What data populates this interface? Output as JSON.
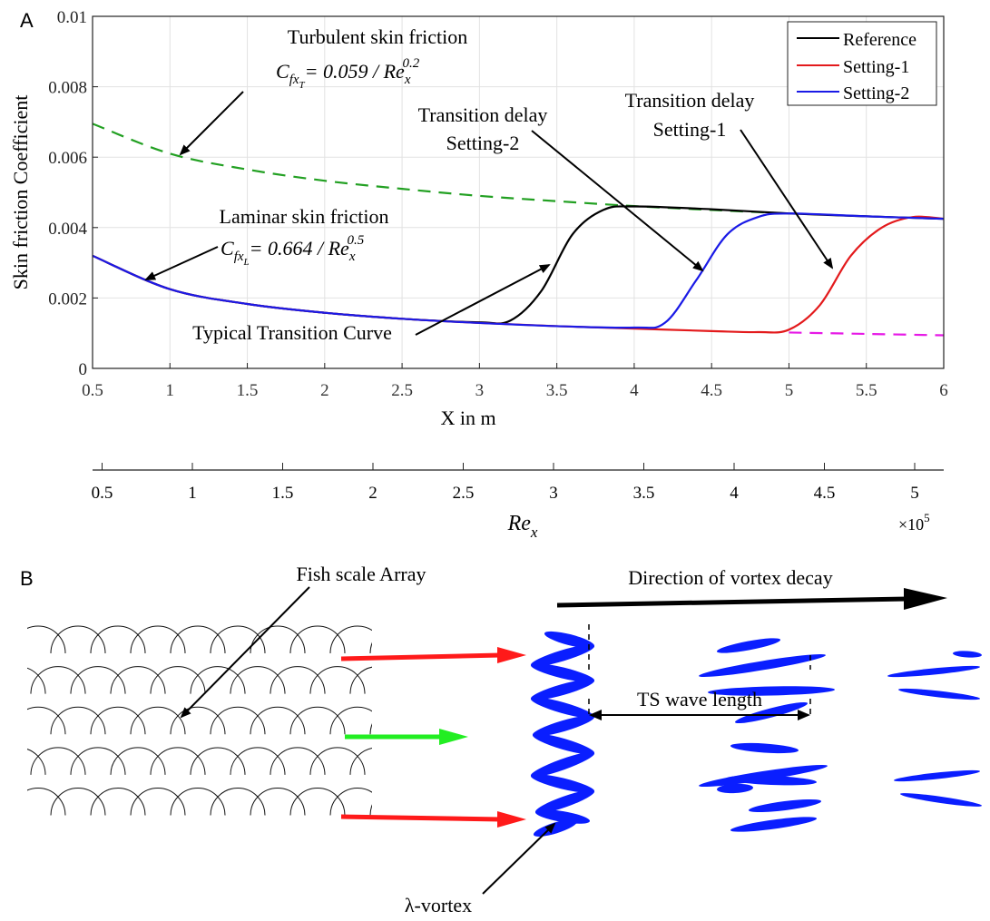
{
  "panel_a_label": "A",
  "panel_b_label": "B",
  "chart_data": {
    "type": "line",
    "xlabel": "X in m",
    "ylabel": "Skin friction Coefficient",
    "xlim": [
      0.5,
      6
    ],
    "ylim": [
      0,
      0.01
    ],
    "xticks": [
      "0.5",
      "1",
      "1.5",
      "2",
      "2.5",
      "3",
      "3.5",
      "4",
      "4.5",
      "5",
      "5.5",
      "6"
    ],
    "yticks": [
      "0",
      "0.002",
      "0.004",
      "0.006",
      "0.008",
      "0.01"
    ],
    "grid": true,
    "legend_position": "top-right",
    "series": [
      {
        "name": "Reference",
        "color": "#000000",
        "x": [
          0.5,
          1,
          1.5,
          2,
          2.5,
          3,
          3.2,
          3.4,
          3.6,
          3.8,
          4.0,
          4.5,
          5.0,
          5.5,
          6.0
        ],
        "y": [
          0.0032,
          0.00225,
          0.00183,
          0.00158,
          0.00141,
          0.00131,
          0.00136,
          0.0022,
          0.0038,
          0.0045,
          0.0046,
          0.00452,
          0.0044,
          0.00432,
          0.00425
        ]
      },
      {
        "name": "Setting-1",
        "color": "#e31a1c",
        "x": [
          0.5,
          1,
          1.5,
          2,
          2.5,
          3,
          3.5,
          4,
          4.5,
          4.8,
          5.0,
          5.2,
          5.4,
          5.6,
          5.8,
          6.0
        ],
        "y": [
          0.0032,
          0.00225,
          0.00183,
          0.00158,
          0.00141,
          0.00129,
          0.0012,
          0.00113,
          0.00106,
          0.00103,
          0.0011,
          0.0018,
          0.0032,
          0.004,
          0.0043,
          0.00425
        ]
      },
      {
        "name": "Setting-2",
        "color": "#1a1ae6",
        "x": [
          0.5,
          1,
          1.5,
          2,
          2.5,
          3,
          3.5,
          4.0,
          4.2,
          4.4,
          4.6,
          4.8,
          5.0,
          5.5,
          6.0
        ],
        "y": [
          0.0032,
          0.00225,
          0.00183,
          0.00158,
          0.00141,
          0.00129,
          0.0012,
          0.00116,
          0.0013,
          0.0025,
          0.0038,
          0.0043,
          0.0044,
          0.00432,
          0.00425
        ]
      },
      {
        "color": "#22a022",
        "style": "dashed",
        "x": [
          0.5,
          1,
          1.5,
          2,
          2.5,
          3,
          3.5,
          4,
          4.5,
          5
        ],
        "y": [
          0.00695,
          0.0061,
          0.00565,
          0.00533,
          0.0051,
          0.0049,
          0.00475,
          0.00461,
          0.0045,
          0.0044
        ]
      },
      {
        "color": "#e619e6",
        "style": "dashed",
        "x": [
          5.0,
          5.5,
          6.0
        ],
        "y": [
          0.00102,
          0.00098,
          0.00094
        ]
      }
    ],
    "secondary_axis": {
      "label": "Re",
      "label_subscript": "x",
      "ticks": [
        "0.5",
        "1",
        "1.5",
        "2",
        "2.5",
        "3",
        "3.5",
        "4",
        "4.5",
        "5"
      ],
      "multiplier_base": "×10",
      "multiplier_exp": "5"
    },
    "annotations": {
      "turbulent_title": "Turbulent skin friction",
      "turbulent_formula": "= 0.059 / Re",
      "turbulent_exp": "0.2",
      "laminar_title": "Laminar skin friction",
      "laminar_formula": "= 0.664 / Re",
      "laminar_exp": "0.5",
      "cf": "C",
      "cf_sub": "fx",
      "turb_subsub": "T",
      "lam_subsub": "L",
      "re_sub": "x",
      "delay2_line1": "Transition delay",
      "delay2_line2": "Setting-2",
      "delay1_line1": "Transition delay",
      "delay1_line2": "Setting-1",
      "typical": "Typical Transition Curve"
    }
  },
  "panel_b": {
    "fish_scale_label": "Fish scale Array",
    "vortex_decay_label": "Direction of vortex decay",
    "lambda_vortex_label": "λ-vortex",
    "ts_wave_label": "TS wave length",
    "arrow_colors": {
      "red": "#ff1a1a",
      "green": "#22ee22",
      "vortex": "#0a1eff"
    }
  }
}
